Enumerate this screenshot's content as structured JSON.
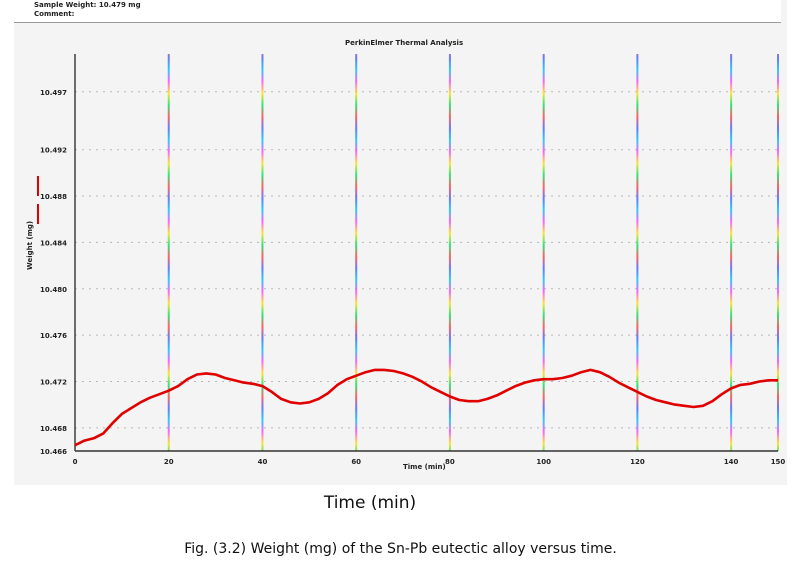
{
  "header": {
    "sample_weight": "Sample Weight: 10.479 mg",
    "comment": "Comment:"
  },
  "figure": {
    "axis_caption": "Time (min)",
    "caption": "Fig. (3.2) Weight (mg) of the Sn-Pb eutectic alloy versus time."
  },
  "chart_data": {
    "type": "line",
    "title": "PerkinElmer Thermal Analysis",
    "xlabel": "Time (min)",
    "ylabel": "Weight (mg)",
    "xlim": [
      0,
      150
    ],
    "ylim": [
      10.466,
      10.5
    ],
    "x_ticks": [
      "0",
      "20",
      "40",
      "60",
      "80",
      "100",
      "120",
      "140",
      "150"
    ],
    "y_ticks": [
      "10.466",
      "10.468",
      "10.472",
      "10.476",
      "10.480",
      "10.484",
      "10.488",
      "10.492",
      "10.497"
    ],
    "grid": true,
    "series": [
      {
        "color": "#e00000",
        "x": [
          0,
          1,
          2,
          4,
          6,
          8,
          10,
          12,
          14,
          16,
          18,
          20,
          22,
          24,
          26,
          28,
          30,
          32,
          34,
          36,
          38,
          40,
          42,
          44,
          46,
          48,
          50,
          52,
          54,
          56,
          58,
          60,
          62,
          64,
          66,
          68,
          70,
          72,
          74,
          76,
          78,
          80,
          82,
          84,
          86,
          88,
          90,
          92,
          94,
          96,
          98,
          100,
          102,
          104,
          106,
          108,
          110,
          112,
          114,
          116,
          118,
          120,
          122,
          124,
          126,
          128,
          130,
          132,
          134,
          136,
          138,
          140,
          142,
          144,
          146,
          148,
          150
        ],
        "y": [
          10.4665,
          10.4667,
          10.4669,
          10.4671,
          10.4675,
          10.4684,
          10.4692,
          10.4697,
          10.4702,
          10.4706,
          10.4709,
          10.4712,
          10.4716,
          10.4722,
          10.4726,
          10.4727,
          10.4726,
          10.4723,
          10.4721,
          10.4719,
          10.4718,
          10.4716,
          10.4711,
          10.4705,
          10.4702,
          10.4701,
          10.4702,
          10.4705,
          10.471,
          10.4717,
          10.4722,
          10.4725,
          10.4728,
          10.473,
          10.473,
          10.4729,
          10.4727,
          10.4724,
          10.472,
          10.4715,
          10.4711,
          10.4707,
          10.4704,
          10.4703,
          10.4703,
          10.4705,
          10.4708,
          10.4712,
          10.4716,
          10.4719,
          10.4721,
          10.4722,
          10.4722,
          10.4723,
          10.4725,
          10.4728,
          10.473,
          10.4728,
          10.4724,
          10.4719,
          10.4715,
          10.4711,
          10.4707,
          10.4704,
          10.4702,
          10.47,
          10.4699,
          10.4698,
          10.4699,
          10.4703,
          10.4709,
          10.4714,
          10.4717,
          10.4718,
          10.472,
          10.4721,
          10.4721
        ]
      }
    ]
  },
  "colors": {
    "line": "#e00000",
    "grid_palette": [
      "#00c0ff",
      "#ff40ff",
      "#ffe000",
      "#00e060",
      "#ff4040",
      "#4060ff"
    ]
  }
}
